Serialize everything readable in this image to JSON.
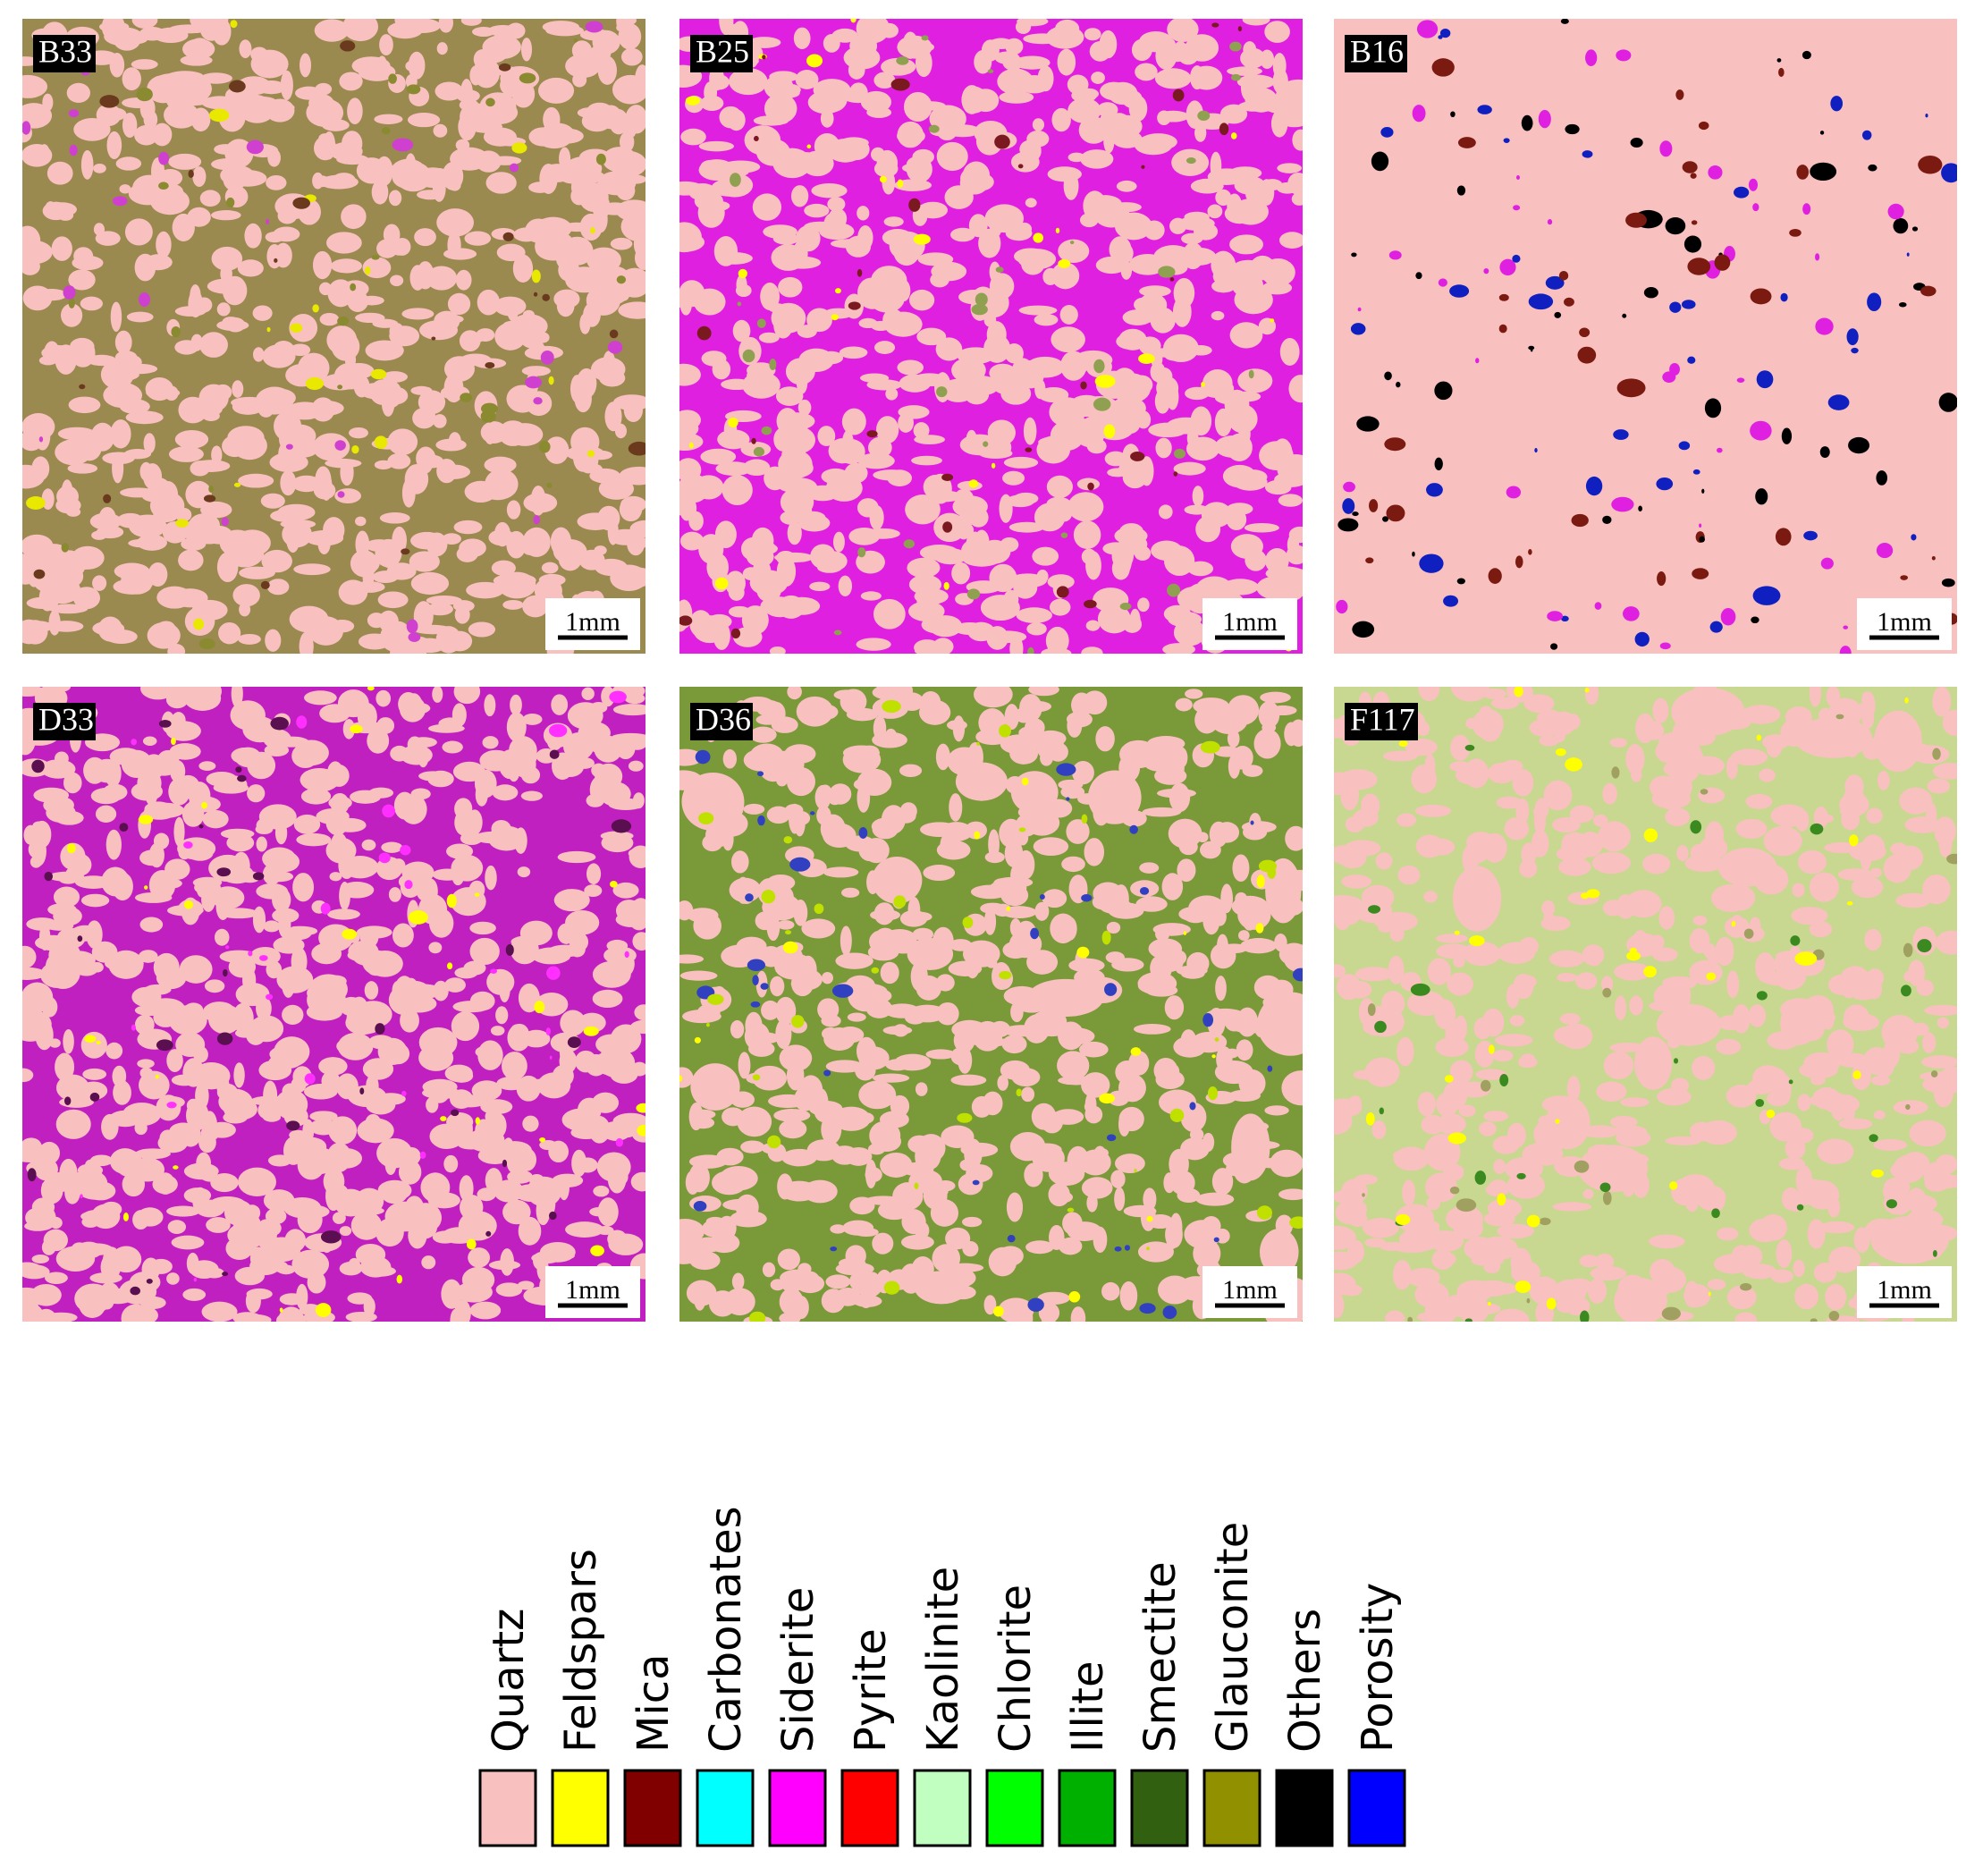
{
  "panels": [
    {
      "label": "B33",
      "scale": "1mm"
    },
    {
      "label": "B25",
      "scale": "1mm"
    },
    {
      "label": "B16",
      "scale": "1mm"
    },
    {
      "label": "D33",
      "scale": "1mm"
    },
    {
      "label": "D36",
      "scale": "1mm"
    },
    {
      "label": "F117",
      "scale": "1mm"
    }
  ],
  "legend": [
    {
      "name": "Quartz",
      "color": "#f9c0c0"
    },
    {
      "name": "Feldspars",
      "color": "#ffff00"
    },
    {
      "name": "Mica",
      "color": "#800000"
    },
    {
      "name": "Carbonates",
      "color": "#00ffff"
    },
    {
      "name": "Siderite",
      "color": "#ff00ff"
    },
    {
      "name": "Pyrite",
      "color": "#ff0000"
    },
    {
      "name": "Kaolinite",
      "color": "#c0ffc0"
    },
    {
      "name": "Chlorite",
      "color": "#00ff00"
    },
    {
      "name": "Illite",
      "color": "#00b000"
    },
    {
      "name": "Smectite",
      "color": "#306010"
    },
    {
      "name": "Glauconite",
      "color": "#909000"
    },
    {
      "name": "Others",
      "color": "#000000"
    },
    {
      "name": "Porosity",
      "color": "#0000ff"
    }
  ]
}
